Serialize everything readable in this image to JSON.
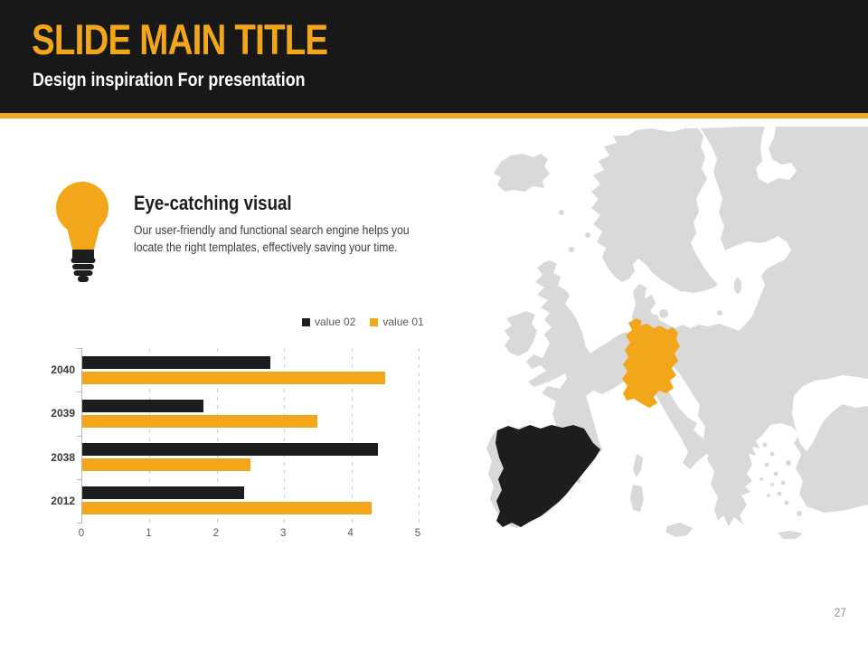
{
  "slide": {
    "title": "SLIDE MAIN TITLE",
    "subtitle": "Design inspiration For presentation",
    "page_number": "27"
  },
  "feature": {
    "icon": "lightbulb-icon",
    "heading": "Eye-catching visual",
    "description_line1": "Our user-friendly and functional search engine helps you",
    "description_line2": "locate the right templates, effectively saving your time."
  },
  "chart_data": {
    "type": "bar",
    "orientation": "horizontal",
    "categories": [
      "2040",
      "2039",
      "2038",
      "2012"
    ],
    "series": [
      {
        "name": "value 02",
        "color": "#1d1d1d",
        "values": [
          2.8,
          1.8,
          4.4,
          2.4
        ]
      },
      {
        "name": "value 01",
        "color": "#f2a71b",
        "values": [
          4.5,
          3.5,
          2.5,
          4.3
        ]
      }
    ],
    "xlim": [
      0,
      5
    ],
    "x_ticks": [
      0,
      1,
      2,
      3,
      4,
      5
    ],
    "grid": "vertical-dashed",
    "legend_position": "top-right-of-plot"
  },
  "map": {
    "name": "europe-map",
    "base_color": "#d9d9d9",
    "highlights": [
      {
        "country": "Germany",
        "color": "#f2a71b"
      },
      {
        "country": "Spain",
        "color": "#1d1d1d"
      }
    ]
  },
  "colors": {
    "accent": "#f2a71b",
    "header_bg": "#181818",
    "series_dark": "#1d1d1d",
    "map_base": "#d9d9d9"
  }
}
